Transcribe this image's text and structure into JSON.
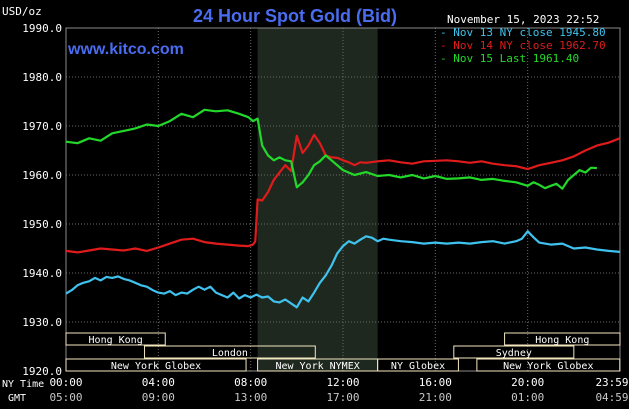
{
  "header": {
    "title": "24 Hour Spot Gold (Bid)",
    "unit": "USD/oz",
    "brand": "www.kitco.com",
    "timestamp": "November 15, 2023 22:52"
  },
  "colors": {
    "background": "#000000",
    "grid": "#6a6a6a",
    "axis_text": "#ffffff",
    "title": "#4a6cf0",
    "brand": "#4a6cf0",
    "nymex_shade": "#1f281f",
    "session_box": "#f2e6bf",
    "session_text": "#000000"
  },
  "legend": [
    {
      "text": "- Nov 13 NY close 1945.80",
      "color": "#3fc2ee"
    },
    {
      "text": "- Nov 14 NY close 1962.70",
      "color": "#e01b1b"
    },
    {
      "text": "- Nov 15 Last 1961.40",
      "color": "#22d92a"
    }
  ],
  "x_axis": {
    "row1_label": "NY Time",
    "row2_label": "GMT",
    "ny_ticks": [
      "00:00",
      "04:00",
      "08:00",
      "12:00",
      "16:00",
      "20:00",
      "23:59"
    ],
    "gmt_ticks": [
      "05:00",
      "09:00",
      "13:00",
      "17:00",
      "21:00",
      "01:00",
      "04:59"
    ]
  },
  "sessions": [
    {
      "label": "Hong Kong",
      "start": 0,
      "end": 4.3
    },
    {
      "label": "Hong Kong",
      "start": 19.0,
      "end": 24.0
    },
    {
      "label": "London",
      "start": 3.4,
      "end": 10.8
    },
    {
      "label": "Sydney",
      "start": 16.8,
      "end": 22.0
    },
    {
      "label": "New York Globex",
      "start": 0,
      "end": 7.8
    },
    {
      "label": "New York NYMEX",
      "start": 8.3,
      "end": 13.5
    },
    {
      "label": "NY Globex",
      "start": 13.5,
      "end": 17.0
    },
    {
      "label": "New York Globex",
      "start": 17.8,
      "end": 23.99
    }
  ],
  "chart_data": {
    "type": "line",
    "title": "24 Hour Spot Gold (Bid)",
    "ylabel": "USD/oz",
    "xlabel": "",
    "ylim": [
      1920,
      1990
    ],
    "xlim": [
      0,
      24
    ],
    "y_ticks": [
      "1920.0",
      "1930.0",
      "1940.0",
      "1950.0",
      "1960.0",
      "1970.0",
      "1980.0",
      "1990.0"
    ],
    "grid": true,
    "legend_position": "top-right",
    "shaded_region": {
      "start": 8.3,
      "end": 13.5
    },
    "series": [
      {
        "name": "Nov 13 NY close 1945.80",
        "color": "#3fc2ee",
        "x": [
          0,
          0.25,
          0.5,
          0.75,
          1,
          1.25,
          1.5,
          1.75,
          2,
          2.25,
          2.5,
          2.75,
          3,
          3.25,
          3.5,
          3.75,
          4,
          4.25,
          4.5,
          4.75,
          5,
          5.25,
          5.5,
          5.75,
          6,
          6.25,
          6.5,
          6.75,
          7,
          7.25,
          7.5,
          7.75,
          8,
          8.25,
          8.5,
          8.75,
          9,
          9.25,
          9.5,
          9.75,
          10,
          10.25,
          10.5,
          10.75,
          11,
          11.25,
          11.5,
          11.75,
          12,
          12.25,
          12.5,
          12.75,
          13,
          13.25,
          13.5,
          13.75,
          14,
          14.5,
          15,
          15.5,
          16,
          16.5,
          17,
          17.5,
          18,
          18.5,
          19,
          19.5,
          19.75,
          20,
          20.25,
          20.5,
          21,
          21.5,
          22,
          22.5,
          23,
          23.5,
          23.99
        ],
        "values": [
          1935.8,
          1936.5,
          1937.5,
          1938.0,
          1938.3,
          1939.0,
          1938.5,
          1939.2,
          1939.0,
          1939.3,
          1938.8,
          1938.5,
          1938.0,
          1937.5,
          1937.2,
          1936.5,
          1936.0,
          1935.8,
          1936.3,
          1935.5,
          1936.0,
          1935.8,
          1936.6,
          1937.2,
          1936.6,
          1937.2,
          1936.0,
          1935.5,
          1935.0,
          1936.0,
          1934.8,
          1935.5,
          1935.0,
          1935.6,
          1935.0,
          1935.2,
          1934.2,
          1934.0,
          1934.6,
          1933.8,
          1933.0,
          1935.0,
          1934.2,
          1936.0,
          1938.0,
          1939.5,
          1941.5,
          1944.0,
          1945.5,
          1946.5,
          1946.0,
          1946.8,
          1947.5,
          1947.2,
          1946.5,
          1947.0,
          1946.8,
          1946.5,
          1946.3,
          1946.0,
          1946.2,
          1946.0,
          1946.2,
          1946.0,
          1946.3,
          1946.5,
          1946.0,
          1946.5,
          1947.0,
          1948.5,
          1947.3,
          1946.2,
          1945.8,
          1946.0,
          1945.0,
          1945.2,
          1944.8,
          1944.5,
          1944.3
        ]
      },
      {
        "name": "Nov 14 NY close 1962.70",
        "color": "#e01b1b",
        "x": [
          0,
          0.5,
          1,
          1.5,
          2,
          2.5,
          3,
          3.5,
          4,
          4.5,
          5,
          5.5,
          6,
          6.5,
          7,
          7.5,
          7.9,
          8.1,
          8.2,
          8.3,
          8.5,
          8.75,
          9,
          9.25,
          9.5,
          9.75,
          10,
          10.25,
          10.5,
          10.75,
          11,
          11.25,
          11.5,
          11.75,
          12,
          12.25,
          12.5,
          12.75,
          13,
          13.5,
          14,
          14.5,
          15,
          15.5,
          16,
          16.5,
          17,
          17.5,
          18,
          18.5,
          19,
          19.5,
          20,
          20.5,
          21,
          21.5,
          22,
          22.5,
          23,
          23.5,
          23.99
        ],
        "values": [
          1944.5,
          1944.2,
          1944.6,
          1945.0,
          1944.8,
          1944.6,
          1945.0,
          1944.5,
          1945.2,
          1946.0,
          1946.8,
          1947.0,
          1946.3,
          1946.0,
          1945.8,
          1945.6,
          1945.5,
          1945.8,
          1946.5,
          1955.0,
          1954.8,
          1956.5,
          1959.0,
          1960.5,
          1962.0,
          1960.8,
          1968.0,
          1964.5,
          1966.0,
          1968.2,
          1966.5,
          1964.0,
          1963.6,
          1963.5,
          1963.0,
          1962.6,
          1962.0,
          1962.6,
          1962.5,
          1962.8,
          1963.0,
          1962.6,
          1962.3,
          1962.8,
          1962.9,
          1963.0,
          1962.8,
          1962.5,
          1962.8,
          1962.3,
          1962.0,
          1961.8,
          1961.2,
          1962.0,
          1962.5,
          1963.0,
          1963.8,
          1965.0,
          1966.0,
          1966.6,
          1967.5
        ]
      },
      {
        "name": "Nov 15 Last 1961.40",
        "color": "#22d92a",
        "x": [
          0,
          0.5,
          1,
          1.5,
          2,
          2.5,
          3,
          3.5,
          4,
          4.5,
          5,
          5.5,
          6,
          6.5,
          7,
          7.5,
          7.9,
          8.1,
          8.3,
          8.5,
          8.75,
          9,
          9.25,
          9.5,
          9.75,
          10,
          10.25,
          10.5,
          10.75,
          11,
          11.25,
          11.5,
          11.75,
          12,
          12.5,
          13,
          13.5,
          14,
          14.5,
          15,
          15.5,
          16,
          16.5,
          17,
          17.5,
          18,
          18.5,
          19,
          19.5,
          20,
          20.25,
          20.5,
          20.75,
          21,
          21.25,
          21.5,
          21.75,
          22,
          22.25,
          22.5,
          22.75,
          23.0
        ],
        "values": [
          1966.8,
          1966.5,
          1967.5,
          1967.0,
          1968.5,
          1969.0,
          1969.5,
          1970.3,
          1970.0,
          1971.0,
          1972.5,
          1971.8,
          1973.3,
          1973.0,
          1973.2,
          1972.5,
          1971.8,
          1971.0,
          1971.5,
          1966.0,
          1964.0,
          1963.0,
          1963.6,
          1963.0,
          1962.8,
          1957.5,
          1958.5,
          1960.0,
          1962.0,
          1962.8,
          1964.0,
          1963.0,
          1962.0,
          1961.0,
          1960.0,
          1960.6,
          1959.8,
          1960.0,
          1959.5,
          1960.0,
          1959.3,
          1959.8,
          1959.2,
          1959.3,
          1959.5,
          1959.0,
          1959.2,
          1958.8,
          1958.5,
          1957.8,
          1958.5,
          1958.0,
          1957.3,
          1957.8,
          1958.2,
          1957.2,
          1959.0,
          1960.0,
          1961.0,
          1960.5,
          1961.5,
          1961.4
        ]
      }
    ]
  }
}
